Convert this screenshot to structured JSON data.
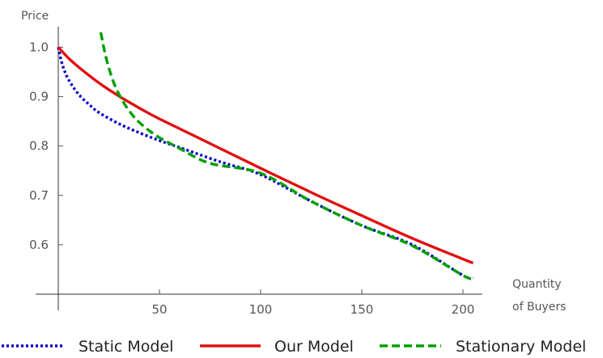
{
  "chart_data": {
    "type": "line",
    "title": "",
    "xlabel_line1": "Quantity",
    "xlabel_line2": "of Buyers",
    "ylabel": "Price",
    "xlim": [
      0,
      210
    ],
    "ylim": [
      0.5,
      1.04
    ],
    "xticks": [
      50,
      100,
      150,
      200
    ],
    "yticks": [
      0.6,
      0.7,
      0.8,
      0.9,
      1.0
    ],
    "xtick_labels": [
      "50",
      "100",
      "150",
      "200"
    ],
    "ytick_labels": [
      "0.6",
      "0.7",
      "0.8",
      "0.9",
      "1.0"
    ],
    "grid": false,
    "legend_position": "bottom",
    "series": [
      {
        "name": "Static Model",
        "color": "#0000cc",
        "dash": "dotted",
        "x": [
          0,
          2,
          5,
          10,
          15,
          20,
          30,
          40,
          50,
          60,
          80,
          100,
          125,
          150,
          175,
          200,
          205
        ],
        "y": [
          1.0,
          0.965,
          0.935,
          0.905,
          0.885,
          0.868,
          0.845,
          0.827,
          0.811,
          0.797,
          0.768,
          0.742,
          0.688,
          0.639,
          0.6,
          0.538,
          0.532
        ]
      },
      {
        "name": "Our Model",
        "color": "#e01010",
        "dash": "solid",
        "x": [
          0,
          5,
          10,
          20,
          30,
          40,
          50,
          75,
          100,
          125,
          150,
          175,
          200,
          205
        ],
        "y": [
          1.0,
          0.978,
          0.96,
          0.928,
          0.901,
          0.877,
          0.855,
          0.805,
          0.755,
          0.706,
          0.659,
          0.613,
          0.571,
          0.563
        ]
      },
      {
        "name": "Stationary Model",
        "color": "#00a000",
        "dash": "dashed",
        "x": [
          21,
          23,
          25,
          28,
          32,
          36,
          40,
          45,
          50,
          60,
          75,
          100,
          125,
          150,
          175,
          200,
          205
        ],
        "y": [
          1.03,
          0.99,
          0.958,
          0.922,
          0.89,
          0.866,
          0.848,
          0.831,
          0.817,
          0.795,
          0.765,
          0.745,
          0.688,
          0.639,
          0.598,
          0.538,
          0.532
        ]
      }
    ]
  }
}
